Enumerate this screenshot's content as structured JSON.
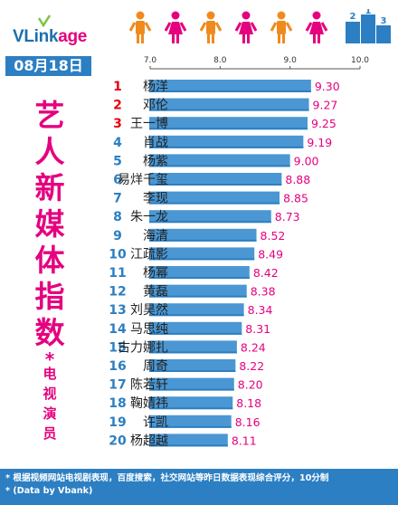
{
  "header": {
    "logo_text_main": "VLink",
    "logo_text_accent": "age",
    "date": "08月18日",
    "side_title": "艺人新媒体指数",
    "side_star": "*",
    "side_subtitle": "电视演员",
    "podium_labels": [
      "2",
      "1",
      "3"
    ]
  },
  "colors": {
    "bar": "#4a97d3",
    "bar_dark": "#2c7fc2",
    "accent": "#e5007f",
    "rank_red": "#e60012",
    "rank_blue": "#2c7fc2",
    "person_orange": "#f08a1e",
    "person_pink": "#e5007f"
  },
  "footer": {
    "line1": "* 根据视频网站电视剧表现，百度搜索，社交网站等昨日数据表现综合评分，10分制",
    "line2": "* (Data by Vbank)"
  },
  "chart_data": {
    "type": "bar",
    "orientation": "horizontal",
    "xlim": [
      7.0,
      10.0
    ],
    "xticks": [
      "7.0",
      "8.0",
      "9.0",
      "10.0"
    ],
    "grid": false,
    "ranks": [
      "1",
      "2",
      "3",
      "4",
      "5",
      "6",
      "7",
      "8",
      "9",
      "10",
      "11",
      "12",
      "13",
      "14",
      "15",
      "16",
      "17",
      "18",
      "19",
      "20"
    ],
    "categories": [
      "杨洋",
      "邓伦",
      "王一博",
      "肖战",
      "杨紫",
      "易烊千玺",
      "李现",
      "朱一龙",
      "海清",
      "江疏影",
      "杨幂",
      "黄磊",
      "刘昊然",
      "马思纯",
      "古力娜扎",
      "周奇",
      "陈若轩",
      "鞠婧祎",
      "许凯",
      "杨超越"
    ],
    "values": [
      9.3,
      9.27,
      9.25,
      9.19,
      9.0,
      8.88,
      8.85,
      8.73,
      8.52,
      8.49,
      8.42,
      8.38,
      8.34,
      8.31,
      8.24,
      8.22,
      8.2,
      8.18,
      8.16,
      8.11
    ],
    "value_labels": [
      "9.30",
      "9.27",
      "9.25",
      "9.19",
      "9.00",
      "8.88",
      "8.85",
      "8.73",
      "8.52",
      "8.49",
      "8.42",
      "8.38",
      "8.34",
      "8.31",
      "8.24",
      "8.22",
      "8.20",
      "8.18",
      "8.16",
      "8.11"
    ]
  }
}
